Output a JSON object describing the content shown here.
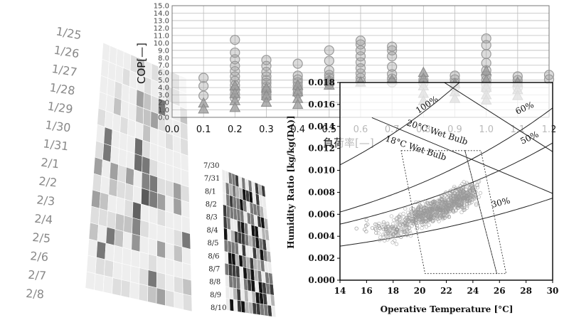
{
  "chart_data": [
    {
      "type": "scatter",
      "ylabel": "COP[—]",
      "xlabel": "負荷率[—]",
      "xlim": [
        0.0,
        1.2
      ],
      "ylim": [
        0.0,
        15.0
      ],
      "xticks": [
        "0.0",
        "0.1",
        "0.2",
        "0.3",
        "0.4",
        "0.5",
        "0.6",
        "0.7",
        "0.8",
        "0.9",
        "1.0",
        "1.1",
        "1.2"
      ],
      "yticks": [
        "0.0",
        "1.0",
        "2.0",
        "3.0",
        "4.0",
        "5.0",
        "6.0",
        "7.0",
        "8.0",
        "9.0",
        "10.0",
        "11.0",
        "12.0",
        "13.0",
        "14.0",
        "15.0"
      ],
      "grid": true,
      "marker_color": "#9a9a9a",
      "series": [
        {
          "marker": "circle",
          "points": [
            [
              0.1,
              5.3
            ],
            [
              0.1,
              4.2
            ],
            [
              0.1,
              2.9
            ],
            [
              0.2,
              10.4
            ],
            [
              0.2,
              8.7
            ],
            [
              0.2,
              7.8
            ],
            [
              0.2,
              6.9
            ],
            [
              0.2,
              6.2
            ],
            [
              0.2,
              5.5
            ],
            [
              0.2,
              4.9
            ],
            [
              0.2,
              4.3
            ],
            [
              0.2,
              3.7
            ],
            [
              0.2,
              3.1
            ],
            [
              0.2,
              2.6
            ],
            [
              0.3,
              7.7
            ],
            [
              0.3,
              6.9
            ],
            [
              0.3,
              6.1
            ],
            [
              0.3,
              5.5
            ],
            [
              0.3,
              5.0
            ],
            [
              0.3,
              4.6
            ],
            [
              0.3,
              4.1
            ],
            [
              0.3,
              3.6
            ],
            [
              0.3,
              3.1
            ],
            [
              0.3,
              2.7
            ],
            [
              0.4,
              7.2
            ],
            [
              0.4,
              5.6
            ],
            [
              0.4,
              5.1
            ],
            [
              0.4,
              4.7
            ],
            [
              0.4,
              4.2
            ],
            [
              0.4,
              3.7
            ],
            [
              0.4,
              3.2
            ],
            [
              0.5,
              9.0
            ],
            [
              0.5,
              7.6
            ],
            [
              0.5,
              6.3
            ],
            [
              0.5,
              5.7
            ],
            [
              0.5,
              5.3
            ],
            [
              0.5,
              4.9
            ],
            [
              0.5,
              4.5
            ],
            [
              0.6,
              10.3
            ],
            [
              0.6,
              9.8
            ],
            [
              0.6,
              9.0
            ],
            [
              0.6,
              8.2
            ],
            [
              0.6,
              7.4
            ],
            [
              0.6,
              6.6
            ],
            [
              0.6,
              5.9
            ],
            [
              0.6,
              5.3
            ],
            [
              0.6,
              4.8
            ],
            [
              0.7,
              9.5
            ],
            [
              0.7,
              9.0
            ],
            [
              0.7,
              8.2
            ],
            [
              0.7,
              6.8
            ],
            [
              0.7,
              5.8
            ],
            [
              0.7,
              5.2
            ],
            [
              0.7,
              4.7
            ],
            [
              0.8,
              5.0
            ],
            [
              0.8,
              4.6
            ],
            [
              0.9,
              5.6
            ],
            [
              0.9,
              5.1
            ],
            [
              0.9,
              4.6
            ],
            [
              0.9,
              4.1
            ],
            [
              1.0,
              10.6
            ],
            [
              1.0,
              9.7
            ],
            [
              1.0,
              8.5
            ],
            [
              1.0,
              7.3
            ],
            [
              1.0,
              6.3
            ],
            [
              1.0,
              5.6
            ],
            [
              1.0,
              5.0
            ],
            [
              1.0,
              4.4
            ],
            [
              1.0,
              3.8
            ],
            [
              1.1,
              5.5
            ],
            [
              1.1,
              5.0
            ],
            [
              1.1,
              4.5
            ],
            [
              1.1,
              4.0
            ],
            [
              1.2,
              5.7
            ],
            [
              1.2,
              5.1
            ]
          ]
        },
        {
          "marker": "triangle",
          "points": [
            [
              0.1,
              2.0
            ],
            [
              0.1,
              1.2
            ],
            [
              0.2,
              4.3
            ],
            [
              0.2,
              3.3
            ],
            [
              0.2,
              2.3
            ],
            [
              0.2,
              1.4
            ],
            [
              0.3,
              4.0
            ],
            [
              0.3,
              3.0
            ],
            [
              0.3,
              2.1
            ],
            [
              0.4,
              4.4
            ],
            [
              0.4,
              3.5
            ],
            [
              0.4,
              2.6
            ],
            [
              0.4,
              1.8
            ],
            [
              0.5,
              5.0
            ],
            [
              0.5,
              4.4
            ],
            [
              0.6,
              4.8
            ],
            [
              0.7,
              5.1
            ],
            [
              0.8,
              6.1
            ],
            [
              0.8,
              5.3
            ],
            [
              0.8,
              4.3
            ],
            [
              0.8,
              3.3
            ],
            [
              0.8,
              2.3
            ],
            [
              0.9,
              4.6
            ],
            [
              0.9,
              3.5
            ],
            [
              0.9,
              2.6
            ],
            [
              1.0,
              6.3
            ],
            [
              1.0,
              5.1
            ],
            [
              1.0,
              4.1
            ],
            [
              1.0,
              3.1
            ],
            [
              1.0,
              2.4
            ],
            [
              1.1,
              4.8
            ],
            [
              1.1,
              3.8
            ],
            [
              1.1,
              3.0
            ]
          ]
        }
      ]
    },
    {
      "type": "scatter",
      "xlabel": "Operative Temperature [°C]",
      "ylabel": "Humidity Ratio [kg/kg(DA)]",
      "xlim": [
        14,
        30
      ],
      "ylim": [
        0.0,
        0.018
      ],
      "xticks": [
        "14",
        "16",
        "18",
        "20",
        "22",
        "24",
        "26",
        "28",
        "30"
      ],
      "yticks": [
        "0.000",
        "0.002",
        "0.004",
        "0.006",
        "0.008",
        "0.010",
        "0.012",
        "0.014",
        "0.016",
        "0.018"
      ],
      "curves": [
        {
          "label": "100%"
        },
        {
          "label": "60%"
        },
        {
          "label": "50%"
        },
        {
          "label": "30%"
        },
        {
          "label": "20°C Wet Bulb"
        },
        {
          "label": "18°C Wet Bulb"
        }
      ],
      "comfort_zone": {
        "inner": [
          [
            18.6,
            0.0118
          ],
          [
            23.4,
            0.0118
          ],
          [
            25.8,
            0.0006
          ],
          [
            20.4,
            0.0006
          ]
        ],
        "outer": [
          [
            23.4,
            0.0118
          ],
          [
            24.6,
            0.0118
          ],
          [
            26.5,
            0.0006
          ],
          [
            25.8,
            0.0006
          ]
        ]
      },
      "cloud": {
        "color": "#9a9a9a",
        "center_line": [
          [
            17.2,
            0.0041
          ],
          [
            20.0,
            0.0058
          ],
          [
            22.0,
            0.0068
          ],
          [
            24.0,
            0.008
          ]
        ],
        "spread": 0.0012
      }
    },
    {
      "type": "heatmap",
      "row_labels": [
        "1/25",
        "1/26",
        "1/27",
        "1/28",
        "1/29",
        "1/30",
        "1/31",
        "2/1",
        "2/2",
        "2/3",
        "2/4",
        "2/5",
        "2/6",
        "2/7",
        "2/8"
      ],
      "columns": 12
    },
    {
      "type": "heatmap",
      "row_labels": [
        "7/30",
        "7/31",
        "8/1",
        "8/2",
        "8/3",
        "8/4",
        "8/5",
        "8/6",
        "8/7",
        "8/8",
        "8/9",
        "8/10"
      ],
      "columns": 13
    }
  ]
}
